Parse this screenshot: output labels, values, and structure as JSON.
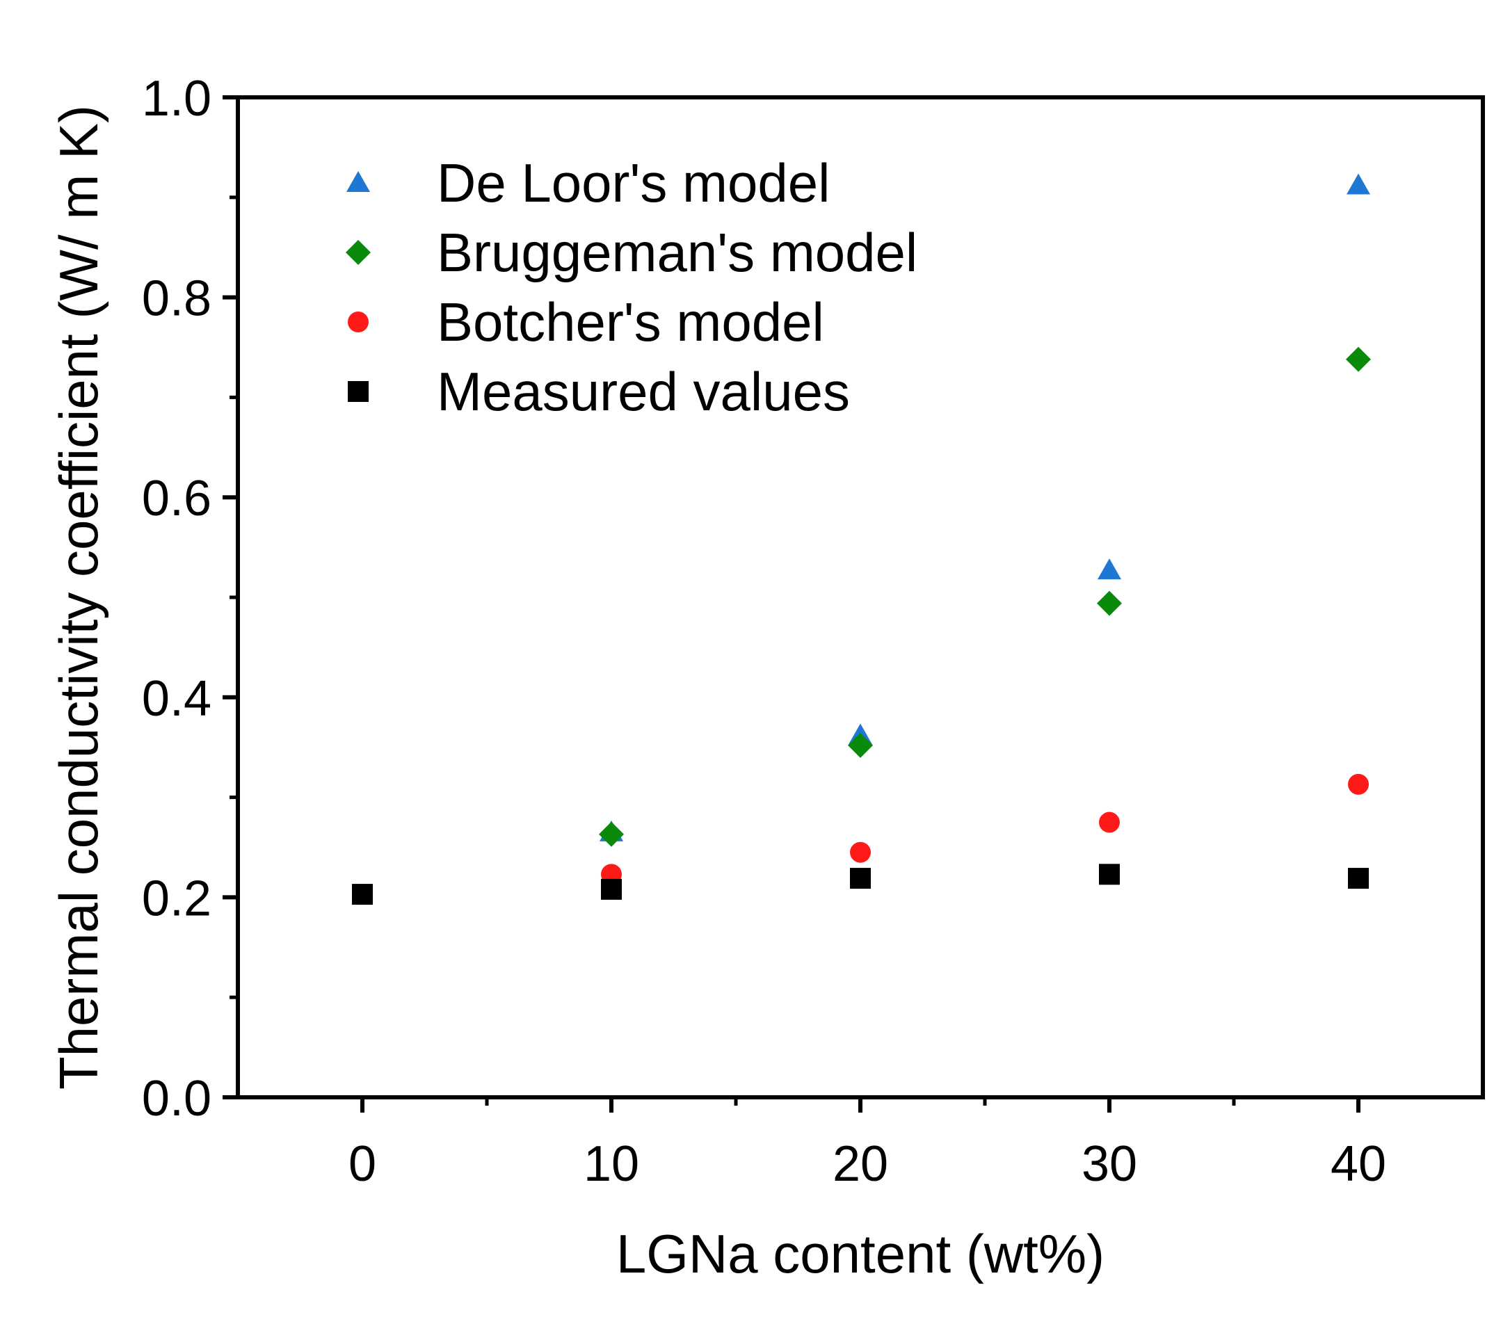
{
  "chart_data": {
    "type": "scatter",
    "title": "",
    "xlabel": "LGNa content (wt%)",
    "ylabel": "Thermal conductivity coefficient (W/ m K)",
    "xlim": [
      -5,
      45
    ],
    "ylim": [
      0.0,
      1.0
    ],
    "x_ticks": [
      0,
      10,
      20,
      30,
      40
    ],
    "x_tick_labels": [
      "0",
      "10",
      "20",
      "30",
      "40"
    ],
    "y_ticks": [
      0.0,
      0.2,
      0.4,
      0.6,
      0.8,
      1.0
    ],
    "y_tick_labels": [
      "0.0",
      "0.2",
      "0.4",
      "0.6",
      "0.8",
      "1.0"
    ],
    "grid": false,
    "legend_position": "top-left",
    "series": [
      {
        "name": "De Loor's model",
        "marker": "triangle",
        "color": "#1f77d4",
        "x": [
          10,
          20,
          30,
          40
        ],
        "values": [
          0.265,
          0.362,
          0.527,
          0.912
        ]
      },
      {
        "name": "Bruggeman's model",
        "marker": "diamond",
        "color": "#0a8a0a",
        "x": [
          10,
          20,
          30,
          40
        ],
        "values": [
          0.263,
          0.352,
          0.494,
          0.738
        ]
      },
      {
        "name": "Botcher's model",
        "marker": "circle",
        "color": "#ff1a1a",
        "x": [
          10,
          20,
          30,
          40
        ],
        "values": [
          0.223,
          0.245,
          0.275,
          0.313
        ]
      },
      {
        "name": "Measured values",
        "marker": "square",
        "color": "#000000",
        "x": [
          0,
          10,
          20,
          30,
          40
        ],
        "values": [
          0.203,
          0.208,
          0.219,
          0.223,
          0.219
        ]
      }
    ]
  }
}
